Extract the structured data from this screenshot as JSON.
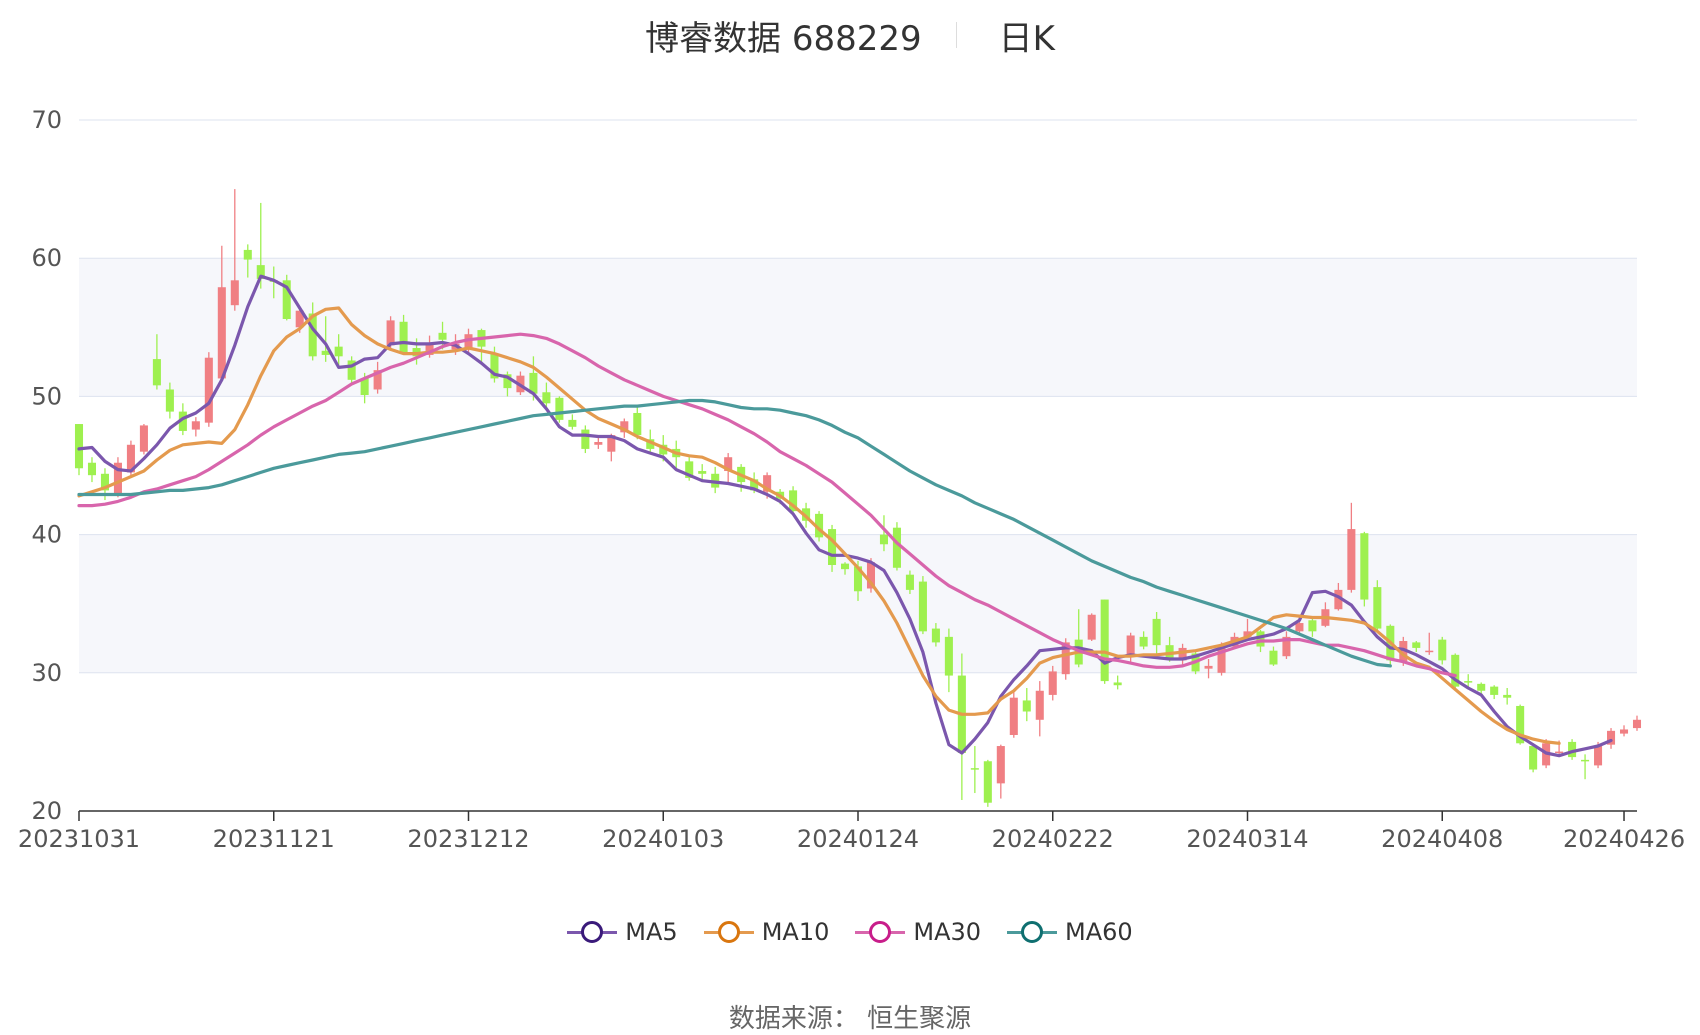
{
  "title": {
    "name": "博睿数据 688229",
    "period": "日K"
  },
  "source": "数据来源： 恒生聚源",
  "colors": {
    "up": "#f07f83",
    "down": "#9ef04f",
    "grid": "#dde3ef",
    "band": "#f6f7fb",
    "axis": "#555555"
  },
  "legend": [
    {
      "name": "MA5",
      "color": "#7b57ad",
      "ring": "#3a1a7a"
    },
    {
      "name": "MA10",
      "color": "#e49a4e",
      "ring": "#d9760f"
    },
    {
      "name": "MA30",
      "color": "#d865ac",
      "ring": "#c81d8a"
    },
    {
      "name": "MA60",
      "color": "#4b9a9b",
      "ring": "#0f6f70"
    }
  ],
  "chart_data": {
    "type": "candlestick",
    "ylim": [
      20,
      70
    ],
    "yticks": [
      "20",
      "30",
      "40",
      "50",
      "60",
      "70"
    ],
    "xticks": [
      {
        "index": 0,
        "label": "20231031"
      },
      {
        "index": 15,
        "label": "20231121"
      },
      {
        "index": 30,
        "label": "20231212"
      },
      {
        "index": 45,
        "label": "20240103"
      },
      {
        "index": 60,
        "label": "20240124"
      },
      {
        "index": 75,
        "label": "20240222"
      },
      {
        "index": 90,
        "label": "20240314"
      },
      {
        "index": 105,
        "label": "20240408"
      },
      {
        "index": 119,
        "label": "20240426"
      }
    ],
    "candles": [
      [
        48,
        44.8,
        48,
        44.3
      ],
      [
        45.2,
        44.3,
        45.6,
        43.8
      ],
      [
        44.4,
        43.2,
        44.8,
        42.5
      ],
      [
        43,
        45.2,
        45.6,
        42.7
      ],
      [
        44.5,
        46.5,
        46.8,
        44.2
      ],
      [
        46,
        47.9,
        48,
        45.8
      ],
      [
        52.7,
        50.8,
        54.5,
        50.5
      ],
      [
        50.5,
        48.9,
        51,
        48.4
      ],
      [
        48.9,
        47.5,
        49.5,
        47.2
      ],
      [
        47.6,
        48.2,
        48.5,
        47.1
      ],
      [
        48.1,
        52.8,
        53.2,
        47.8
      ],
      [
        51.3,
        57.9,
        60.9,
        51.2
      ],
      [
        56.6,
        58.4,
        65,
        56.2
      ],
      [
        60.6,
        59.9,
        61,
        58.6
      ],
      [
        59.5,
        58.5,
        64,
        57.8
      ],
      [
        58.4,
        58.3,
        59.4,
        57.1
      ],
      [
        58.4,
        55.6,
        58.8,
        55.5
      ],
      [
        55,
        56.2,
        56.5,
        54.6
      ],
      [
        56,
        52.9,
        56.8,
        52.6
      ],
      [
        53.3,
        53,
        55.8,
        52.5
      ],
      [
        53.6,
        52.9,
        54.5,
        52.2
      ],
      [
        52.6,
        51.2,
        52.9,
        51
      ],
      [
        51.3,
        50.1,
        51.7,
        49.5
      ],
      [
        50.5,
        51.9,
        52.5,
        50.2
      ],
      [
        53.7,
        55.5,
        55.8,
        53.3
      ],
      [
        55.4,
        53.2,
        55.9,
        53
      ],
      [
        53.5,
        52.9,
        54.2,
        52.3
      ],
      [
        53,
        53.9,
        54.4,
        52.8
      ],
      [
        54.6,
        54.1,
        55.4,
        53.4
      ],
      [
        53.4,
        53.8,
        54.5,
        53
      ],
      [
        53.5,
        54.5,
        54.9,
        53.1
      ],
      [
        54.8,
        53.6,
        54.9,
        52.3
      ],
      [
        53.1,
        51.3,
        53.6,
        51
      ],
      [
        51.6,
        50.6,
        51.8,
        50
      ],
      [
        50.3,
        51.5,
        51.8,
        50.1
      ],
      [
        51.7,
        50.2,
        52.9,
        49.7
      ],
      [
        50.3,
        49.5,
        51,
        49.2
      ],
      [
        49.9,
        48.3,
        50,
        48.1
      ],
      [
        48.3,
        47.8,
        48.7,
        47.6
      ],
      [
        47.6,
        46.2,
        47.9,
        45.9
      ],
      [
        46.5,
        46.7,
        47,
        46.2
      ],
      [
        46,
        47.2,
        47.3,
        45.3
      ],
      [
        47.4,
        48.2,
        48.4,
        47
      ],
      [
        48.8,
        47.2,
        49.4,
        46.9
      ],
      [
        46.9,
        46.2,
        47.6,
        45.8
      ],
      [
        46.5,
        45.8,
        47.2,
        45.3
      ],
      [
        46.2,
        45.6,
        46.8,
        44.8
      ],
      [
        45.3,
        44.1,
        45.6,
        43.9
      ],
      [
        44.6,
        44.4,
        45.1,
        43.8
      ],
      [
        44.4,
        43.4,
        44.9,
        43
      ],
      [
        44.6,
        45.6,
        45.9,
        43.6
      ],
      [
        44.9,
        43.8,
        45.1,
        43.1
      ],
      [
        44,
        43.2,
        44.5,
        43
      ],
      [
        43.1,
        44.3,
        44.5,
        42.6
      ],
      [
        43.1,
        42.6,
        43.3,
        42.2
      ],
      [
        43.2,
        41.7,
        43.5,
        41.5
      ],
      [
        41.9,
        41,
        42.3,
        40.5
      ],
      [
        41.5,
        39.8,
        41.7,
        39.5
      ],
      [
        40.4,
        37.8,
        40.7,
        37.3
      ],
      [
        37.9,
        37.5,
        38,
        37.1
      ],
      [
        37.7,
        35.9,
        38.1,
        35.2
      ],
      [
        36.1,
        38,
        38.3,
        35.8
      ],
      [
        40,
        39.3,
        41.4,
        38.8
      ],
      [
        40.5,
        37.6,
        40.9,
        37.4
      ],
      [
        37.1,
        36,
        37.4,
        35.7
      ],
      [
        36.6,
        33,
        37,
        32.8
      ],
      [
        33.2,
        32.2,
        33.6,
        31.9
      ],
      [
        32.6,
        29.8,
        33.2,
        28.6
      ],
      [
        29.8,
        24.2,
        31.4,
        20.8
      ],
      [
        23.1,
        23,
        24.7,
        21.3
      ],
      [
        23.6,
        20.6,
        23.7,
        20.3
      ],
      [
        22,
        24.7,
        24.8,
        20.9
      ],
      [
        25.5,
        28.2,
        28.7,
        25.3
      ],
      [
        28,
        27.2,
        28.9,
        26.5
      ],
      [
        26.6,
        28.7,
        29.4,
        25.4
      ],
      [
        28.4,
        30.1,
        30.5,
        28
      ],
      [
        29.9,
        32.2,
        32.5,
        29.5
      ],
      [
        32.4,
        30.6,
        34.6,
        30.4
      ],
      [
        32.4,
        34.2,
        34.3,
        32.3
      ],
      [
        35.3,
        29.4,
        35.3,
        29.2
      ],
      [
        29.3,
        29.1,
        29.8,
        28.8
      ],
      [
        31.2,
        32.7,
        32.9,
        30.8
      ],
      [
        32.6,
        31.9,
        33,
        31.7
      ],
      [
        33.9,
        32,
        34.4,
        31.4
      ],
      [
        32,
        31.1,
        32.6,
        30.8
      ],
      [
        30.9,
        31.8,
        32.1,
        30.4
      ],
      [
        31.4,
        30.1,
        31.6,
        29.9
      ],
      [
        30.3,
        30.5,
        31,
        29.6
      ],
      [
        30,
        31.9,
        32.2,
        29.8
      ],
      [
        31.9,
        32.6,
        32.9,
        31.8
      ],
      [
        32.6,
        33,
        33.9,
        32.3
      ],
      [
        33,
        31.9,
        33.1,
        31.5
      ],
      [
        31.6,
        30.6,
        31.9,
        30.5
      ],
      [
        31.2,
        32.6,
        33,
        31
      ],
      [
        33,
        33.6,
        34,
        32.9
      ],
      [
        33.8,
        33,
        33.9,
        32.6
      ],
      [
        33.4,
        34.6,
        35.1,
        33.3
      ],
      [
        34.6,
        36,
        36.5,
        34.5
      ],
      [
        36,
        40.4,
        42.3,
        35.8
      ],
      [
        40.1,
        35.3,
        40.2,
        34.8
      ],
      [
        36.2,
        33.2,
        36.7,
        33
      ],
      [
        33.4,
        30.9,
        33.5,
        30.6
      ],
      [
        30.8,
        32.3,
        32.6,
        30.5
      ],
      [
        32.2,
        31.8,
        32.3,
        31.5
      ],
      [
        31.5,
        31.6,
        32.9,
        31.3
      ],
      [
        32.4,
        30.9,
        32.6,
        30.6
      ],
      [
        31.3,
        29,
        31.4,
        28.8
      ],
      [
        29.4,
        29.3,
        29.9,
        28.9
      ],
      [
        29.2,
        28.7,
        29.3,
        28.4
      ],
      [
        29,
        28.4,
        29.1,
        28.1
      ],
      [
        28.4,
        28.2,
        28.9,
        27.7
      ],
      [
        27.6,
        24.9,
        27.7,
        24.8
      ],
      [
        24.7,
        23,
        24.9,
        22.8
      ],
      [
        23.3,
        24.9,
        25.2,
        23.1
      ],
      [
        24.3,
        24.3,
        25.1,
        24
      ],
      [
        25,
        23.9,
        25.2,
        23.7
      ],
      [
        23.7,
        23.6,
        24.1,
        22.3
      ],
      [
        23.3,
        24.7,
        25,
        23.1
      ],
      [
        24.8,
        25.8,
        26,
        24.5
      ],
      [
        25.6,
        25.9,
        26.2,
        25.4
      ],
      [
        26,
        26.6,
        26.9,
        25.8
      ]
    ],
    "series": [
      {
        "name": "MA5",
        "values": [
          46.2,
          46.3,
          45.3,
          44.7,
          44.6,
          45.5,
          46.5,
          47.7,
          48.4,
          48.8,
          49.5,
          51.2,
          53.7,
          56.5,
          58.7,
          58.4,
          57.9,
          56.4,
          54.9,
          53.8,
          52.1,
          52.2,
          52.7,
          52.8,
          53.8,
          53.9,
          53.8,
          53.8,
          53.9,
          53.7,
          53.1,
          52.4,
          51.6,
          51.4,
          50.8,
          50.2,
          49.1,
          47.8,
          47.2,
          47.2,
          47.1,
          47.1,
          46.8,
          46.2,
          45.9,
          45.6,
          44.7,
          44.3,
          43.9,
          43.8,
          43.7,
          43.5,
          43.3,
          42.9,
          42.4,
          41.5,
          40.1,
          38.9,
          38.5,
          38.5,
          38.3,
          38,
          37.4,
          35.8,
          33.9,
          31.5,
          27.8,
          24.8,
          24.2,
          25.2,
          26.4,
          28.3,
          29.5,
          30.5,
          31.6,
          31.7,
          31.8,
          31.8,
          31.6,
          30.7,
          31.1,
          31.3,
          31.2,
          31.1,
          31,
          31,
          31.2,
          31.5,
          31.8,
          32.1,
          32.4,
          32.6,
          32.8,
          33.2,
          33.8,
          35.8,
          35.9,
          35.5,
          34.9,
          33.7,
          32.6,
          31.8,
          31.7,
          31.3,
          30.8,
          30.3,
          29.5,
          28.9,
          28.4,
          27.2,
          26.1,
          25.4,
          24.8,
          24.2,
          24,
          24.3,
          24.5,
          24.7,
          25.1
        ]
      },
      {
        "name": "MA10",
        "values": [
          42.8,
          43.1,
          43.4,
          43.8,
          44.2,
          44.6,
          45.4,
          46.1,
          46.5,
          46.6,
          46.7,
          46.6,
          47.6,
          49.4,
          51.5,
          53.3,
          54.3,
          54.9,
          55.8,
          56.3,
          56.4,
          55.2,
          54.4,
          53.8,
          53.4,
          53.1,
          53.1,
          53.2,
          53.2,
          53.3,
          53.5,
          53.3,
          53.1,
          52.8,
          52.5,
          52.1,
          51.4,
          50.6,
          49.8,
          49,
          48.4,
          48,
          47.6,
          47.1,
          46.7,
          46.3,
          45.9,
          45.7,
          45.6,
          45.2,
          44.7,
          44.3,
          43.9,
          43.3,
          42.8,
          42.1,
          41.3,
          40.4,
          39.6,
          38.6,
          37.6,
          36.5,
          35.2,
          33.6,
          31.7,
          29.8,
          28.3,
          27.3,
          27,
          27,
          27.1,
          28.1,
          28.7,
          29.6,
          30.7,
          31.1,
          31.3,
          31.5,
          31.5,
          31.5,
          31.2,
          31.2,
          31.3,
          31.3,
          31.4,
          31.5,
          31.6,
          31.8,
          32,
          32.3,
          32.6,
          33.3,
          34,
          34.2,
          34.1,
          34,
          34,
          33.9,
          33.8,
          33.6,
          33,
          32.2,
          31.3,
          30.7,
          30.4,
          29.6,
          28.8,
          28,
          27.2,
          26.5,
          25.9,
          25.5,
          25.2,
          25,
          24.9
        ]
      },
      {
        "name": "MA30",
        "values": [
          42.1,
          42.1,
          42.2,
          42.4,
          42.7,
          43.1,
          43.3,
          43.6,
          43.9,
          44.2,
          44.7,
          45.3,
          45.9,
          46.5,
          47.2,
          47.8,
          48.3,
          48.8,
          49.3,
          49.7,
          50.3,
          50.9,
          51.3,
          51.7,
          52.1,
          52.4,
          52.8,
          53.2,
          53.6,
          53.9,
          54.1,
          54.2,
          54.3,
          54.4,
          54.5,
          54.4,
          54.2,
          53.8,
          53.3,
          52.8,
          52.2,
          51.7,
          51.2,
          50.8,
          50.4,
          50,
          49.7,
          49.4,
          49.1,
          48.7,
          48.3,
          47.8,
          47.3,
          46.7,
          46,
          45.5,
          45,
          44.4,
          43.8,
          43,
          42.2,
          41.4,
          40.4,
          39.4,
          38.6,
          37.8,
          37,
          36.3,
          35.8,
          35.3,
          34.9,
          34.4,
          33.9,
          33.4,
          32.9,
          32.4,
          32,
          31.6,
          31.3,
          31,
          30.9,
          30.7,
          30.5,
          30.4,
          30.4,
          30.5,
          30.8,
          31.2,
          31.5,
          31.8,
          32.1,
          32.3,
          32.3,
          32.4,
          32.4,
          32.2,
          32,
          32,
          31.8,
          31.6,
          31.3,
          31,
          30.8,
          30.5,
          30.3,
          30,
          29.8
        ]
      },
      {
        "name": "MA60",
        "values": [
          42.9,
          42.9,
          42.9,
          42.9,
          42.9,
          43,
          43.1,
          43.2,
          43.2,
          43.3,
          43.4,
          43.6,
          43.9,
          44.2,
          44.5,
          44.8,
          45,
          45.2,
          45.4,
          45.6,
          45.8,
          45.9,
          46,
          46.2,
          46.4,
          46.6,
          46.8,
          47,
          47.2,
          47.4,
          47.6,
          47.8,
          48,
          48.2,
          48.4,
          48.6,
          48.7,
          48.8,
          48.9,
          49,
          49.1,
          49.2,
          49.3,
          49.3,
          49.4,
          49.5,
          49.6,
          49.7,
          49.7,
          49.6,
          49.4,
          49.2,
          49.1,
          49.1,
          49,
          48.8,
          48.6,
          48.3,
          47.9,
          47.4,
          47,
          46.4,
          45.8,
          45.2,
          44.6,
          44.1,
          43.6,
          43.2,
          42.8,
          42.3,
          41.9,
          41.5,
          41.1,
          40.6,
          40.1,
          39.6,
          39.1,
          38.6,
          38.1,
          37.7,
          37.3,
          36.9,
          36.6,
          36.2,
          35.9,
          35.6,
          35.3,
          35,
          34.7,
          34.4,
          34.1,
          33.8,
          33.5,
          33.2,
          32.8,
          32.4,
          32,
          31.6,
          31.2,
          30.9,
          30.6,
          30.5
        ]
      }
    ]
  }
}
